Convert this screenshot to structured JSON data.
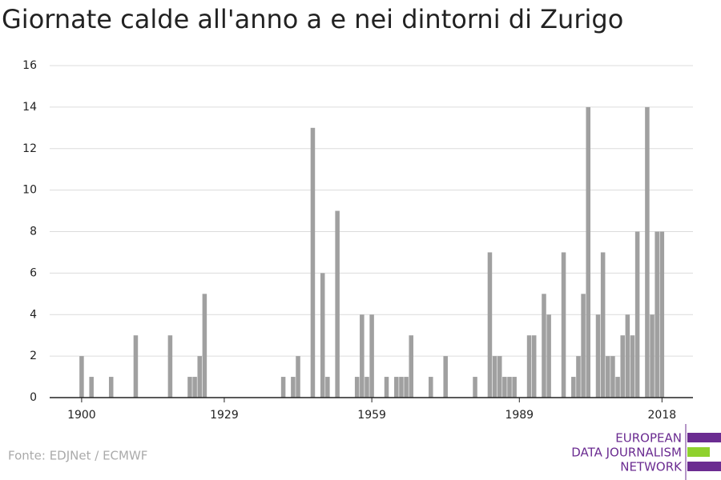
{
  "chart_data": {
    "type": "bar",
    "title": "Giornate calde all'anno a e nei dintorni di Zurigo",
    "source": "Fonte: EDJNet / ECMWF",
    "logo": [
      "EUROPEAN",
      "DATA JOURNALISM",
      "NETWORK"
    ],
    "x": [
      1900,
      1902,
      1906,
      1911,
      1918,
      1922,
      1923,
      1924,
      1925,
      1941,
      1943,
      1944,
      1947,
      1949,
      1950,
      1952,
      1956,
      1957,
      1958,
      1959,
      1962,
      1964,
      1965,
      1966,
      1967,
      1971,
      1974,
      1980,
      1983,
      1984,
      1985,
      1986,
      1987,
      1988,
      1991,
      1992,
      1994,
      1995,
      1998,
      2000,
      2001,
      2002,
      2003,
      2005,
      2006,
      2007,
      2008,
      2009,
      2010,
      2011,
      2012,
      2013,
      2015,
      2016,
      2017,
      2018
    ],
    "values": [
      2,
      1,
      1,
      3,
      3,
      1,
      1,
      2,
      5,
      1,
      1,
      2,
      13,
      6,
      1,
      9,
      1,
      4,
      1,
      4,
      1,
      1,
      1,
      1,
      3,
      1,
      2,
      1,
      7,
      2,
      2,
      1,
      1,
      1,
      3,
      3,
      5,
      4,
      7,
      1,
      2,
      5,
      14,
      4,
      7,
      2,
      2,
      1,
      3,
      4,
      3,
      8,
      14,
      4,
      8,
      8
    ],
    "color": "#a0a0a0",
    "xlim": [
      1893.5,
      2024.3
    ],
    "xticks": [
      1900,
      1929,
      1959,
      1989,
      2018
    ],
    "ylim": [
      0,
      16
    ],
    "yticks": [
      0,
      2,
      4,
      6,
      8,
      10,
      12,
      14,
      16
    ],
    "grid": true
  }
}
